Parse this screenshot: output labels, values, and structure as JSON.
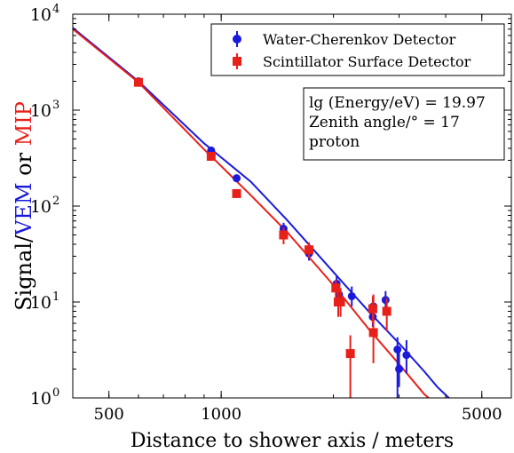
{
  "chart_data": {
    "type": "scatter",
    "xlabel": "Distance to shower axis / meters",
    "ylabel_parts": [
      {
        "text": "Signal/",
        "color": "#000000"
      },
      {
        "text": "VEM",
        "color": "#1a1adb"
      },
      {
        "text": " or ",
        "color": "#000000"
      },
      {
        "text": "MIP",
        "color": "#e8201a"
      }
    ],
    "x_scale": "log",
    "y_scale": "log",
    "xlim": [
      400,
      6000
    ],
    "ylim": [
      1,
      10000
    ],
    "x_ticks": [
      {
        "value": 500,
        "label": "500"
      },
      {
        "value": 1000,
        "label": "1000"
      },
      {
        "value": 5000,
        "label": "5000"
      }
    ],
    "y_ticks": [
      {
        "value": 1,
        "base": "10",
        "exp": "0"
      },
      {
        "value": 10,
        "base": "10",
        "exp": "1"
      },
      {
        "value": 100,
        "base": "10",
        "exp": "2"
      },
      {
        "value": 1000,
        "base": "10",
        "exp": "3"
      },
      {
        "value": 10000,
        "base": "10",
        "exp": "4"
      }
    ],
    "legend": {
      "placement": "top-right",
      "entries": [
        {
          "label": "Water-Cherenkov Detector",
          "color": "#1a1adb",
          "marker": "circle"
        },
        {
          "label": "Scintillator Surface Detector",
          "color": "#e8201a",
          "marker": "square"
        }
      ]
    },
    "annotation": {
      "placement": "right",
      "lines": [
        "lg (Energy/eV) = 19.97",
        "Zenith angle/° = 17",
        "proton"
      ]
    },
    "series": [
      {
        "name": "Water-Cherenkov Detector",
        "color": "#1a1adb",
        "marker": "circle",
        "points": [
          {
            "x": 600,
            "y": 2000,
            "ylo": 1850,
            "yhi": 2150
          },
          {
            "x": 940,
            "y": 380,
            "ylo": 345,
            "yhi": 415
          },
          {
            "x": 1100,
            "y": 195,
            "ylo": 180,
            "yhi": 210
          },
          {
            "x": 1470,
            "y": 58,
            "ylo": 50,
            "yhi": 67
          },
          {
            "x": 1720,
            "y": 32,
            "ylo": 27,
            "yhi": 38
          },
          {
            "x": 2040,
            "y": 15.5,
            "ylo": 12.5,
            "yhi": 19
          },
          {
            "x": 2070,
            "y": 12,
            "ylo": 9.5,
            "yhi": 15
          },
          {
            "x": 2240,
            "y": 11.5,
            "ylo": 9,
            "yhi": 14.5
          },
          {
            "x": 2550,
            "y": 7,
            "ylo": 5.5,
            "yhi": 9
          },
          {
            "x": 2560,
            "y": 9,
            "ylo": 7,
            "yhi": 11.5
          },
          {
            "x": 2760,
            "y": 10.5,
            "ylo": 8.5,
            "yhi": 13
          },
          {
            "x": 2970,
            "y": 3.2,
            "ylo": 1,
            "yhi": 4.3
          },
          {
            "x": 3000,
            "y": 2,
            "ylo": 1.3,
            "yhi": 3
          },
          {
            "x": 3140,
            "y": 2.8,
            "ylo": 1.8,
            "yhi": 4
          }
        ]
      },
      {
        "name": "Scintillator Surface Detector",
        "color": "#e8201a",
        "marker": "square",
        "points": [
          {
            "x": 600,
            "y": 1950,
            "ylo": 1800,
            "yhi": 2100
          },
          {
            "x": 940,
            "y": 330,
            "ylo": 300,
            "yhi": 365
          },
          {
            "x": 1100,
            "y": 135,
            "ylo": 122,
            "yhi": 150
          },
          {
            "x": 1470,
            "y": 50,
            "ylo": 40,
            "yhi": 60
          },
          {
            "x": 1720,
            "y": 35,
            "ylo": 29,
            "yhi": 42
          },
          {
            "x": 2030,
            "y": 14,
            "ylo": 11,
            "yhi": 17
          },
          {
            "x": 2060,
            "y": 10,
            "ylo": 7,
            "yhi": 14
          },
          {
            "x": 2090,
            "y": 10,
            "ylo": 7,
            "yhi": 14
          },
          {
            "x": 2220,
            "y": 2.9,
            "ylo": 1,
            "yhi": 4.5
          },
          {
            "x": 2550,
            "y": 8.5,
            "ylo": 6,
            "yhi": 11.5
          },
          {
            "x": 2560,
            "y": 4.8,
            "ylo": 2.3,
            "yhi": 12
          },
          {
            "x": 2780,
            "y": 8,
            "ylo": 5,
            "yhi": 11
          }
        ]
      }
    ],
    "fit_lines": [
      {
        "color": "#1a1adb",
        "points": [
          [
            400,
            7200
          ],
          [
            600,
            2000
          ],
          [
            900,
            450
          ],
          [
            1200,
            180
          ],
          [
            1500,
            72
          ],
          [
            2000,
            20.5
          ],
          [
            2500,
            7.8
          ],
          [
            3000,
            3.7
          ],
          [
            3500,
            1.9
          ],
          [
            3800,
            1.3
          ],
          [
            4080,
            1
          ]
        ]
      },
      {
        "color": "#e8201a",
        "points": [
          [
            400,
            7000
          ],
          [
            600,
            1950
          ],
          [
            900,
            390
          ],
          [
            1200,
            130
          ],
          [
            1500,
            54
          ],
          [
            2000,
            15
          ],
          [
            2500,
            5.1
          ],
          [
            3000,
            2.25
          ],
          [
            3500,
            1.1
          ],
          [
            3600,
            1
          ]
        ]
      }
    ]
  }
}
